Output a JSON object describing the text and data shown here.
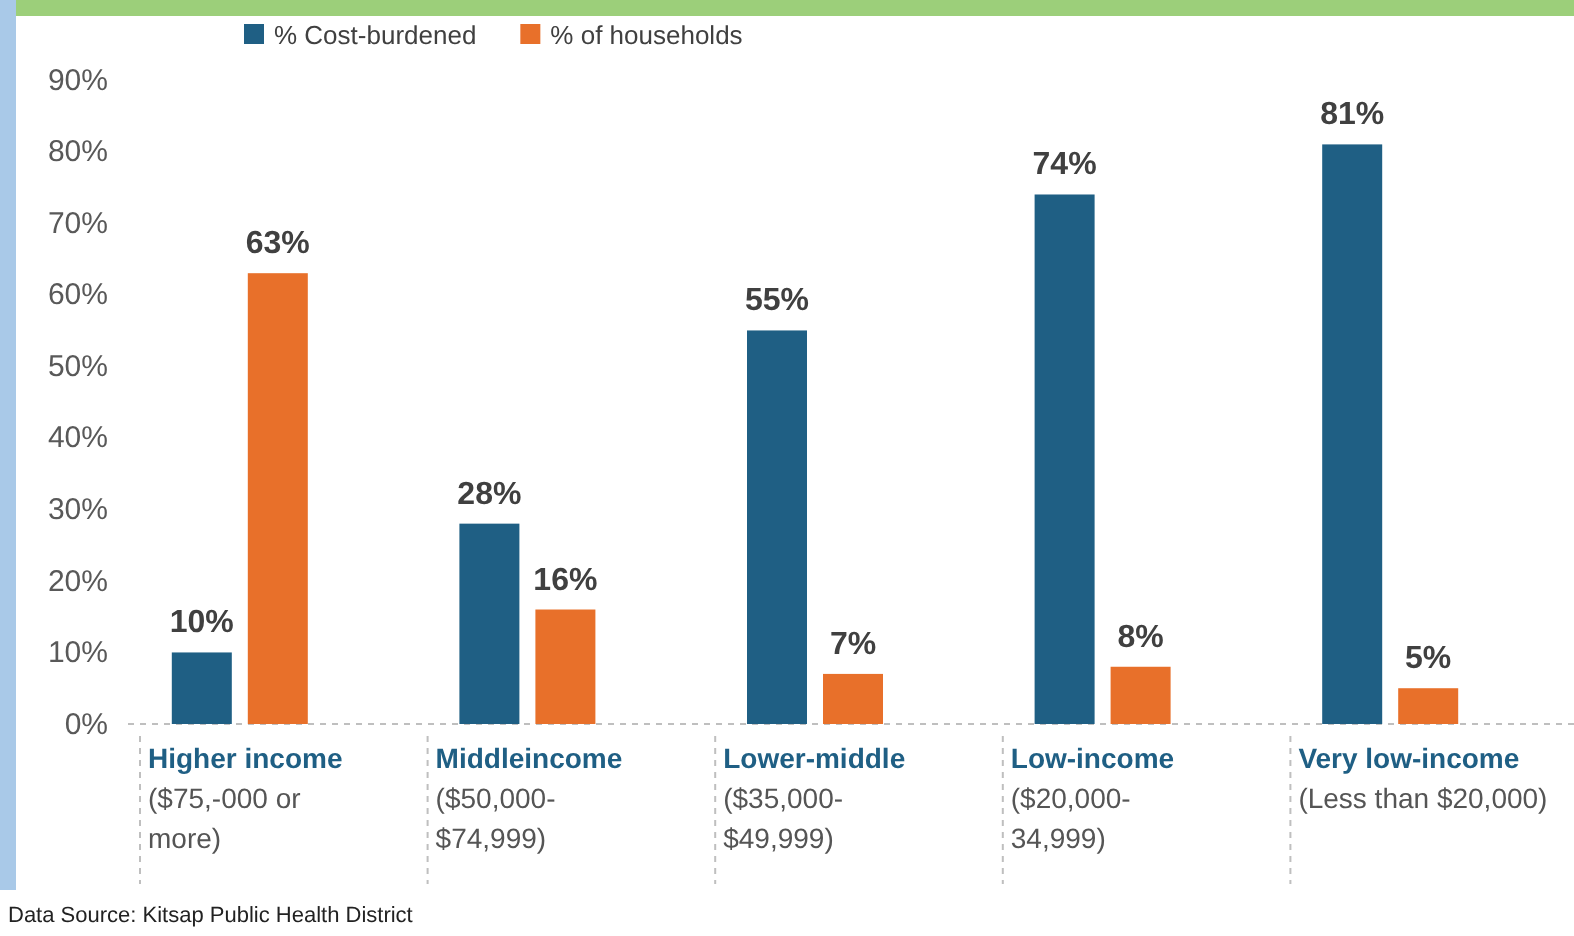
{
  "chart_data": {
    "type": "bar",
    "categories": [
      "Higher income\n($75,-000 or\nmore)",
      "Middleincome\n($50,000-\n$74,999)",
      "Lower-middle\n($35,000-\n$49,999)",
      "Low-income\n($20,000-\n34,999)",
      "Very low-income\n(Less than  $20,000)"
    ],
    "series": [
      {
        "name": "% Cost-burdened",
        "color": "#1f5f84",
        "values": [
          10,
          28,
          55,
          74,
          81
        ],
        "value_labels": [
          "10%",
          "28%",
          "55%",
          "74%",
          "81%"
        ]
      },
      {
        "name": "% of households",
        "color": "#e8702a",
        "values": [
          63,
          16,
          7,
          8,
          5
        ],
        "value_labels": [
          "63%",
          "16%",
          "7%",
          "8%",
          "5%"
        ]
      }
    ],
    "ylim": [
      0,
      90
    ],
    "yticks": [
      {
        "value": 0,
        "label": "0%"
      },
      {
        "value": 10,
        "label": "10%"
      },
      {
        "value": 20,
        "label": "20%"
      },
      {
        "value": 30,
        "label": "30%"
      },
      {
        "value": 40,
        "label": "40%"
      },
      {
        "value": 50,
        "label": "50%"
      },
      {
        "value": 60,
        "label": "60%"
      },
      {
        "value": 70,
        "label": "70%"
      },
      {
        "value": 80,
        "label": "80%"
      },
      {
        "value": 90,
        "label": "90%"
      }
    ],
    "grid": false,
    "legend": "top",
    "annotations": [
      "Data Source: Kitsap Public Health District"
    ]
  }
}
